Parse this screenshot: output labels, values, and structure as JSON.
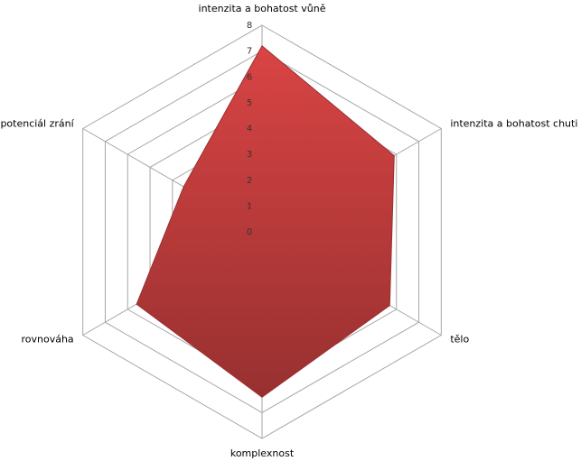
{
  "chart_data": {
    "type": "radar",
    "categories": [
      "intenzita a bohatost vůně",
      "intenzita a bohatost chuti",
      "tělo",
      "komplexnost",
      "rovnováha",
      "potenciál zrání"
    ],
    "values": [
      7.2,
      5.9,
      5.7,
      6.4,
      5.6,
      3.5
    ],
    "color": "#d94444",
    "ylim": [
      0,
      8
    ],
    "yticks": [
      0,
      1,
      2,
      3,
      4,
      5,
      6,
      7,
      8
    ],
    "grid": true
  }
}
